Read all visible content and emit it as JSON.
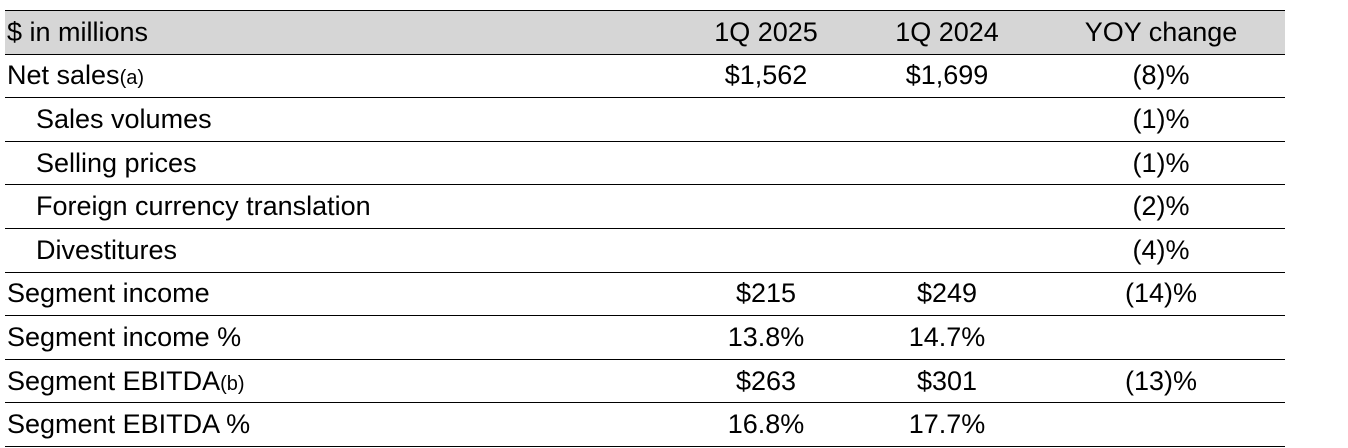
{
  "table": {
    "headers": [
      "$ in millions",
      "1Q 2025",
      "1Q 2024",
      "YOY change"
    ],
    "rows": [
      {
        "label": "Net sales",
        "note": "(a)",
        "indent": false,
        "q1_2025": "$1,562",
        "q1_2024": "$1,699",
        "yoy": "(8)%"
      },
      {
        "label": "Sales volumes",
        "note": "",
        "indent": true,
        "q1_2025": "",
        "q1_2024": "",
        "yoy": "(1)%"
      },
      {
        "label": "Selling prices",
        "note": "",
        "indent": true,
        "q1_2025": "",
        "q1_2024": "",
        "yoy": "(1)%"
      },
      {
        "label": "Foreign currency translation",
        "note": "",
        "indent": true,
        "q1_2025": "",
        "q1_2024": "",
        "yoy": "(2)%"
      },
      {
        "label": "Divestitures",
        "note": "",
        "indent": true,
        "q1_2025": "",
        "q1_2024": "",
        "yoy": "(4)%"
      },
      {
        "label": "Segment income",
        "note": "",
        "indent": false,
        "q1_2025": "$215",
        "q1_2024": "$249",
        "yoy": "(14)%"
      },
      {
        "label": "Segment income %",
        "note": "",
        "indent": false,
        "q1_2025": "13.8%",
        "q1_2024": "14.7%",
        "yoy": ""
      },
      {
        "label": "Segment EBITDA",
        "note": "(b)",
        "indent": false,
        "q1_2025": "$263",
        "q1_2024": "$301",
        "yoy": "(13)%"
      },
      {
        "label": "Segment EBITDA %",
        "note": "",
        "indent": false,
        "q1_2025": "16.8%",
        "q1_2024": "17.7%",
        "yoy": ""
      }
    ]
  },
  "colors": {
    "header_background": "#d6d6d6",
    "rule": "#000000",
    "text": "#000000"
  }
}
